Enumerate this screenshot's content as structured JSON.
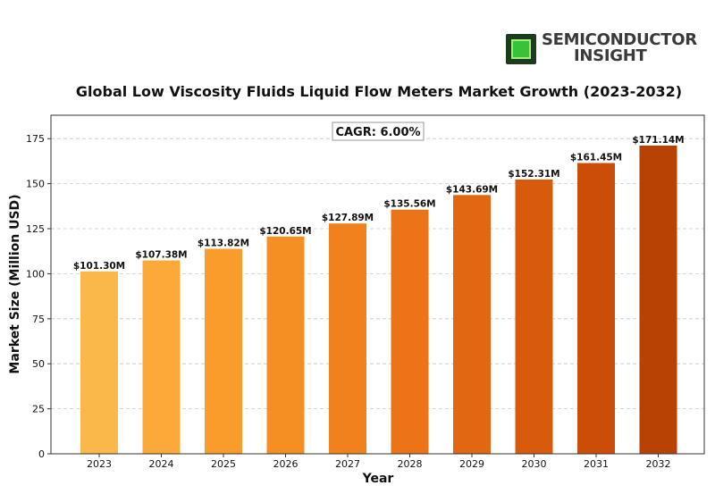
{
  "brand": {
    "line1": "SEMICONDUCTOR",
    "line2": "INSIGHT"
  },
  "chart_data": {
    "type": "bar",
    "title": "Global Low Viscosity Fluids Liquid Flow Meters Market Growth (2023-2032)",
    "xlabel": "Year",
    "ylabel": "Market Size (Million USD)",
    "categories": [
      "2023",
      "2024",
      "2025",
      "2026",
      "2027",
      "2028",
      "2029",
      "2030",
      "2031",
      "2032"
    ],
    "values": [
      101.3,
      107.38,
      113.82,
      120.65,
      127.89,
      135.56,
      143.69,
      152.31,
      161.45,
      171.14
    ],
    "data_labels": [
      "$101.30M",
      "$107.38M",
      "$113.82M",
      "$120.65M",
      "$127.89M",
      "$135.56M",
      "$143.69M",
      "$152.31M",
      "$161.45M",
      "$171.14M"
    ],
    "ylim": [
      0,
      188
    ],
    "yticks": [
      0,
      25,
      50,
      75,
      100,
      125,
      150,
      175
    ],
    "grid": "horizontal dashed",
    "annotation": "CAGR: 6.00%",
    "colors": [
      "#fbb84a",
      "#fbaa3a",
      "#f99c2c",
      "#f58f23",
      "#f1811d",
      "#ea7417",
      "#e16712",
      "#d75a0d",
      "#cc4d08",
      "#b84204"
    ]
  }
}
